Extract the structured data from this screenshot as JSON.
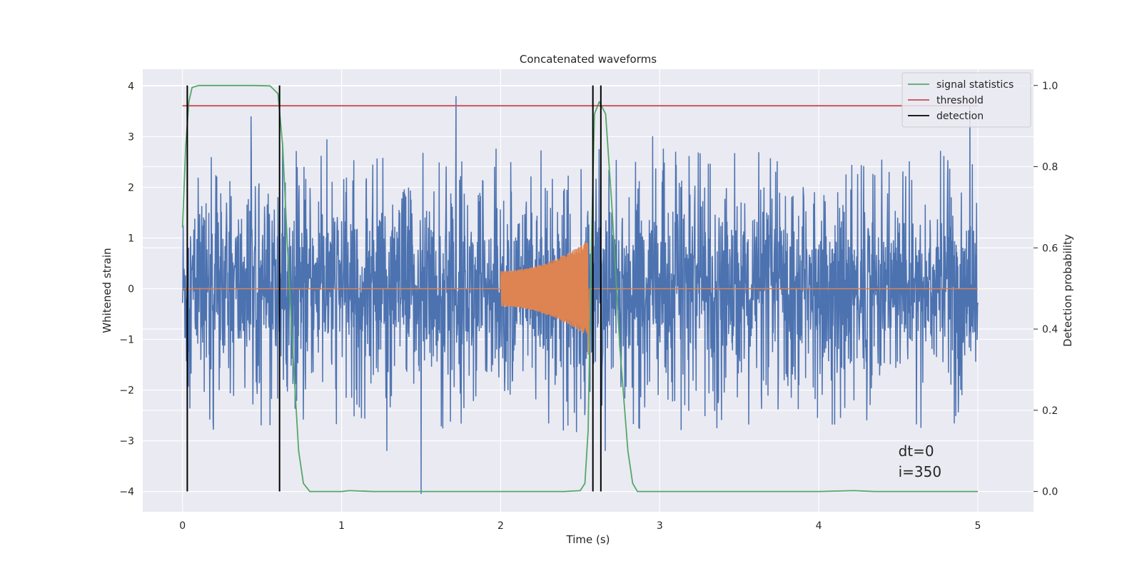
{
  "chart_data": {
    "type": "line",
    "title": "Concatenated waveforms",
    "xlabel": "Time (s)",
    "ylabel": "Whitened strain",
    "y2label": "Detection probability",
    "xlim": [
      -0.25,
      5.35
    ],
    "ylim": [
      -4.4,
      4.33
    ],
    "y2lim": [
      -0.05,
      1.04
    ],
    "xticks": [
      0,
      1,
      2,
      3,
      4,
      5
    ],
    "yticks": [
      -4,
      -3,
      -2,
      -1,
      0,
      1,
      2,
      3,
      4
    ],
    "y2ticks": [
      0.0,
      0.2,
      0.4,
      0.6,
      0.8,
      1.0
    ],
    "y2tick_labels": [
      "0.0",
      "0.2",
      "0.4",
      "0.6",
      "0.8",
      "1.0"
    ],
    "grid": true,
    "legend_position": "top-right",
    "colors": {
      "strain": "#4c72b0",
      "template": "#dd8452",
      "signal_statistics": "#55a868",
      "threshold": "#c44e52",
      "detection": "#000000",
      "background": "#eaeaf2",
      "grid": "#ffffff"
    },
    "series": [
      {
        "name": "signal statistics",
        "axis": "right",
        "x": [
          0.0,
          0.02,
          0.04,
          0.06,
          0.1,
          0.15,
          0.3,
          0.45,
          0.55,
          0.6,
          0.63,
          0.66,
          0.7,
          0.73,
          0.76,
          0.8,
          1.0,
          1.05,
          1.2,
          2.0,
          2.4,
          2.5,
          2.53,
          2.55,
          2.57,
          2.59,
          2.62,
          2.66,
          2.7,
          2.75,
          2.8,
          2.83,
          2.86,
          3.0,
          4.0,
          4.22,
          4.35,
          5.0
        ],
        "values": [
          0.65,
          0.85,
          0.96,
          0.995,
          1.0,
          1.0,
          1.0,
          1.0,
          0.999,
          0.98,
          0.85,
          0.6,
          0.3,
          0.1,
          0.02,
          0.0,
          0.0,
          0.002,
          0.0,
          0.0,
          0.0,
          0.002,
          0.02,
          0.15,
          0.6,
          0.93,
          0.96,
          0.93,
          0.7,
          0.35,
          0.1,
          0.02,
          0.0,
          0.0,
          0.0,
          0.002,
          0.0,
          0.0
        ]
      },
      {
        "name": "threshold",
        "axis": "right",
        "x": [
          0.0,
          5.0
        ],
        "values": [
          0.95,
          0.95
        ]
      },
      {
        "name": "detection",
        "axis": "right",
        "type": "vlines",
        "x": [
          0.03,
          0.61,
          2.58,
          2.63
        ],
        "range": [
          0.0,
          1.0
        ]
      }
    ],
    "strain": {
      "axis": "left",
      "x_range": [
        0.0,
        5.0
      ],
      "amplitude_envelope": 1.2,
      "peak_x": [
        0.43,
        1.5,
        1.72,
        4.95
      ],
      "peak_values": [
        3.4,
        -4.05,
        3.8,
        3.6
      ]
    },
    "template": {
      "axis": "left",
      "x_range": [
        2.0,
        2.55
      ],
      "amplitude_start": 0.35,
      "amplitude_end": 0.95
    },
    "annotation": {
      "lines": [
        "dt=0",
        "i=350"
      ],
      "x": 4.5,
      "y": -3.3
    }
  }
}
